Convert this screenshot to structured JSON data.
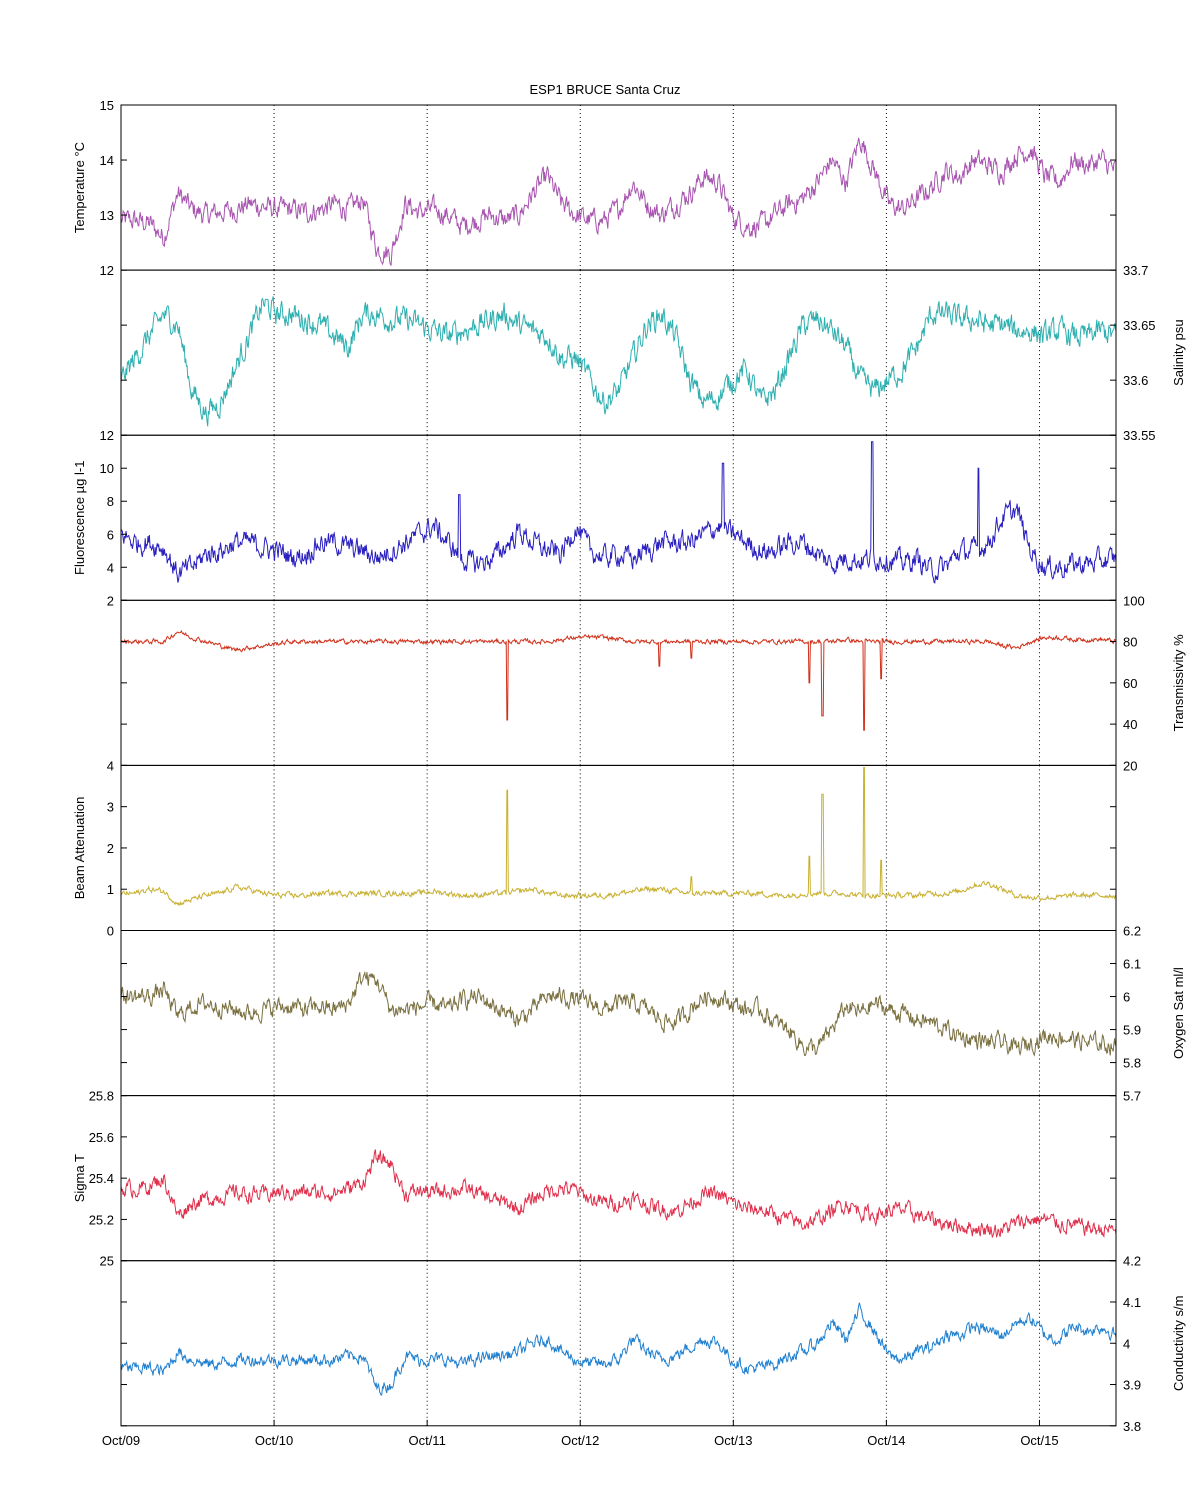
{
  "chart_data": {
    "type": "line",
    "title": "ESP1 BRUCE Santa Cruz",
    "x_ticks": [
      "Oct/09",
      "Oct/10",
      "Oct/11",
      "Oct/12",
      "Oct/13",
      "Oct/14",
      "Oct/15"
    ],
    "xlim": [
      "2000-10-09 00:00",
      "2000-10-15 12:00"
    ],
    "grid": "x-dotted",
    "panels": [
      {
        "name": "Temperature °C",
        "ylabel": "Temperature °C",
        "axis_side": "left",
        "ylim": [
          12,
          15
        ],
        "ticks": [
          12,
          13,
          14,
          15
        ],
        "color": "#a855b0",
        "series_y": [
          12.9,
          12.9,
          12.85,
          12.6,
          13.4,
          13.1,
          13.0,
          13.05,
          13.1,
          13.2,
          13.15,
          13.1,
          13.1,
          13.05,
          13.1,
          13.2,
          13.1,
          13.3,
          12.4,
          12.3,
          13.2,
          13.05,
          13.1,
          13.0,
          12.8,
          12.9,
          13.0,
          12.9,
          13.0,
          13.4,
          13.7,
          13.2,
          13.0,
          12.9,
          12.9,
          13.1,
          13.6,
          13.2,
          13.0,
          13.2,
          13.4,
          13.7,
          13.6,
          13.0,
          12.8,
          12.8,
          13.0,
          13.2,
          13.3,
          13.6,
          14.0,
          13.6,
          14.4,
          13.8,
          13.2,
          13.1,
          13.3,
          13.5,
          13.8,
          13.7,
          14.0,
          13.9,
          13.8,
          14.1,
          14.2,
          13.7,
          13.6,
          14.0,
          13.9,
          14.0,
          13.8
        ],
        "noise": 0.18
      },
      {
        "name": "Salinity psu",
        "ylabel": "Salinity psu",
        "axis_side": "right",
        "ylim": [
          33.55,
          33.7
        ],
        "ticks": [
          33.55,
          33.6,
          33.65,
          33.7
        ],
        "color": "#2fb0b0",
        "series_y": [
          33.6,
          33.62,
          33.64,
          33.66,
          33.65,
          33.59,
          33.57,
          33.58,
          33.61,
          33.64,
          33.67,
          33.66,
          33.66,
          33.655,
          33.65,
          33.64,
          33.63,
          33.66,
          33.66,
          33.655,
          33.655,
          33.65,
          33.645,
          33.64,
          33.645,
          33.65,
          33.655,
          33.66,
          33.65,
          33.645,
          33.64,
          33.62,
          33.62,
          33.6,
          33.58,
          33.59,
          33.62,
          33.65,
          33.66,
          33.64,
          33.6,
          33.58,
          33.585,
          33.6,
          33.61,
          33.58,
          33.59,
          33.62,
          33.65,
          33.655,
          33.645,
          33.63,
          33.6,
          33.59,
          33.6,
          33.61,
          33.63,
          33.66,
          33.66,
          33.655,
          33.655,
          33.65,
          33.65,
          33.645,
          33.645,
          33.64,
          33.645,
          33.64,
          33.64,
          33.645,
          33.64
        ],
        "noise": 0.01
      },
      {
        "name": "Fluorescence µg l-1",
        "ylabel": "Fluorescence µg l-1",
        "axis_side": "left",
        "ylim": [
          2,
          12
        ],
        "ticks": [
          2,
          4,
          6,
          8,
          10,
          12
        ],
        "color": "#2a20c0",
        "series_y": [
          6.0,
          5.5,
          5.5,
          5.2,
          3.6,
          4.0,
          4.8,
          5.0,
          5.5,
          5.5,
          5.2,
          5.0,
          4.6,
          4.8,
          5.5,
          5.5,
          5.2,
          5.0,
          4.6,
          5.0,
          5.5,
          6.0,
          6.5,
          5.5,
          4.5,
          4.2,
          4.5,
          5.2,
          6.2,
          5.5,
          5.0,
          4.8,
          6.5,
          5.0,
          4.6,
          4.8,
          4.5,
          5.0,
          5.5,
          5.5,
          5.5,
          6.0,
          6.5,
          6.0,
          5.5,
          5.0,
          5.0,
          5.5,
          5.5,
          4.8,
          4.2,
          4.6,
          4.4,
          4.6,
          4.5,
          4.3,
          4.5,
          3.8,
          4.0,
          5.0,
          5.0,
          5.5,
          7.0,
          7.5,
          5.0,
          4.0,
          4.0,
          4.2,
          4.2,
          4.4,
          4.5
        ],
        "noise": 0.6,
        "spikes": [
          [
            0.755,
            11.6
          ],
          [
            0.605,
            10.3
          ],
          [
            0.862,
            10.0
          ],
          [
            0.34,
            8.4
          ]
        ]
      },
      {
        "name": "Transmissivity %",
        "ylabel": "Transmissivity %",
        "axis_side": "right",
        "ylim": [
          20,
          100
        ],
        "ticks": [
          20,
          40,
          60,
          80,
          100
        ],
        "color": "#d0301a",
        "series_y": [
          80,
          80,
          80,
          80,
          85,
          82,
          80,
          78,
          76,
          77,
          78,
          79,
          80,
          80,
          80,
          80,
          80,
          80,
          80,
          80,
          80,
          80,
          80,
          80,
          80,
          80,
          80,
          80,
          80,
          80,
          80,
          81,
          82,
          82,
          82,
          81,
          80,
          80,
          80,
          80,
          80,
          80,
          80,
          80,
          80,
          80,
          80,
          80,
          80,
          80,
          80,
          81,
          80,
          80,
          80,
          80,
          80,
          80,
          80,
          80,
          80,
          80,
          78,
          77,
          80,
          82,
          82,
          81,
          81,
          81,
          80
        ],
        "noise": 1.0,
        "spikes": [
          [
            0.388,
            42
          ],
          [
            0.705,
            44
          ],
          [
            0.747,
            37
          ],
          [
            0.692,
            60
          ],
          [
            0.764,
            62
          ],
          [
            0.573,
            72
          ],
          [
            0.541,
            68
          ]
        ]
      },
      {
        "name": "Beam Attenuation",
        "ylabel": "Beam Attenuation",
        "axis_side": "left",
        "ylim": [
          0,
          4
        ],
        "ticks": [
          0,
          1,
          2,
          3,
          4
        ],
        "color": "#c8b030",
        "series_y": [
          0.9,
          0.9,
          1.0,
          0.95,
          0.65,
          0.75,
          0.85,
          0.9,
          1.05,
          1.0,
          0.9,
          0.85,
          0.85,
          0.85,
          0.9,
          0.9,
          0.9,
          0.9,
          0.9,
          0.9,
          0.9,
          0.9,
          0.95,
          0.9,
          0.85,
          0.85,
          0.9,
          0.9,
          0.95,
          1.0,
          0.9,
          0.85,
          0.85,
          0.85,
          0.85,
          0.9,
          0.95,
          1.0,
          1.0,
          0.95,
          0.9,
          0.9,
          0.9,
          0.9,
          0.9,
          0.9,
          0.85,
          0.85,
          0.9,
          0.9,
          0.9,
          0.9,
          0.85,
          0.85,
          0.85,
          0.85,
          0.85,
          0.9,
          0.9,
          0.95,
          1.1,
          1.15,
          1.0,
          0.85,
          0.8,
          0.8,
          0.8,
          0.85,
          0.85,
          0.85,
          0.85
        ],
        "noise": 0.06,
        "spikes": [
          [
            0.388,
            3.4
          ],
          [
            0.705,
            3.3
          ],
          [
            0.747,
            3.95
          ],
          [
            0.692,
            1.8
          ],
          [
            0.764,
            1.7
          ],
          [
            0.573,
            1.3
          ]
        ]
      },
      {
        "name": "Oxygen Sat ml/l",
        "ylabel": "Oxygen Sat ml/l",
        "axis_side": "right",
        "ylim": [
          5.7,
          6.2
        ],
        "ticks": [
          5.7,
          5.8,
          5.9,
          6.0,
          6.1,
          6.2
        ],
        "color": "#7a7040",
        "series_y": [
          6.0,
          6.0,
          6.0,
          6.02,
          5.94,
          5.97,
          5.98,
          5.97,
          5.96,
          5.95,
          5.96,
          5.97,
          5.97,
          5.96,
          5.97,
          5.96,
          5.98,
          6.06,
          6.05,
          5.96,
          5.96,
          5.97,
          5.98,
          5.96,
          5.99,
          6.0,
          5.98,
          5.95,
          5.93,
          5.96,
          6.0,
          6.0,
          5.99,
          5.98,
          5.96,
          5.98,
          5.98,
          5.96,
          5.93,
          5.92,
          5.96,
          6.0,
          6.0,
          5.98,
          5.96,
          5.96,
          5.92,
          5.9,
          5.85,
          5.84,
          5.9,
          5.97,
          5.95,
          5.98,
          5.96,
          5.95,
          5.93,
          5.92,
          5.9,
          5.88,
          5.87,
          5.86,
          5.86,
          5.84,
          5.86,
          5.88,
          5.88,
          5.87,
          5.86,
          5.86,
          5.85
        ],
        "noise": 0.025
      },
      {
        "name": "Sigma T",
        "ylabel": "Sigma T",
        "axis_side": "left",
        "ylim": [
          25,
          25.8
        ],
        "ticks": [
          25,
          25.2,
          25.4,
          25.6,
          25.8
        ],
        "color": "#e0304c",
        "series_y": [
          25.35,
          25.35,
          25.36,
          25.4,
          25.22,
          25.28,
          25.3,
          25.31,
          25.33,
          25.32,
          25.32,
          25.33,
          25.33,
          25.33,
          25.33,
          25.33,
          25.35,
          25.38,
          25.5,
          25.47,
          25.32,
          25.34,
          25.33,
          25.34,
          25.35,
          25.33,
          25.3,
          25.28,
          25.25,
          25.3,
          25.34,
          25.35,
          25.34,
          25.3,
          25.28,
          25.28,
          25.3,
          25.27,
          25.25,
          25.24,
          25.28,
          25.32,
          25.32,
          25.28,
          25.25,
          25.25,
          25.22,
          25.2,
          25.18,
          25.2,
          25.24,
          25.28,
          25.24,
          25.22,
          25.24,
          25.25,
          25.22,
          25.2,
          25.18,
          25.17,
          25.16,
          25.15,
          25.15,
          25.18,
          25.2,
          25.2,
          25.18,
          25.17,
          25.16,
          25.15,
          25.15
        ],
        "noise": 0.035
      },
      {
        "name": "Conductivity s/m",
        "ylabel": "Conductivity s/m",
        "axis_side": "right",
        "ylim": [
          3.8,
          4.2
        ],
        "ticks": [
          3.8,
          3.9,
          4.0,
          4.1,
          4.2
        ],
        "color": "#2080d0",
        "series_y": [
          3.94,
          3.94,
          3.94,
          3.93,
          3.98,
          3.96,
          3.95,
          3.95,
          3.96,
          3.96,
          3.96,
          3.96,
          3.96,
          3.96,
          3.96,
          3.96,
          3.97,
          3.97,
          3.89,
          3.9,
          3.97,
          3.96,
          3.96,
          3.96,
          3.95,
          3.96,
          3.97,
          3.97,
          3.98,
          4.0,
          4.01,
          3.98,
          3.96,
          3.95,
          3.95,
          3.96,
          4.01,
          3.98,
          3.96,
          3.97,
          3.99,
          4.01,
          4.0,
          3.96,
          3.94,
          3.94,
          3.95,
          3.97,
          3.98,
          4.0,
          4.05,
          4.01,
          4.08,
          4.03,
          3.97,
          3.96,
          3.98,
          3.99,
          4.02,
          4.02,
          4.04,
          4.03,
          4.02,
          4.05,
          4.06,
          4.02,
          4.01,
          4.04,
          4.03,
          4.04,
          4.02
        ],
        "noise": 0.014
      }
    ]
  }
}
